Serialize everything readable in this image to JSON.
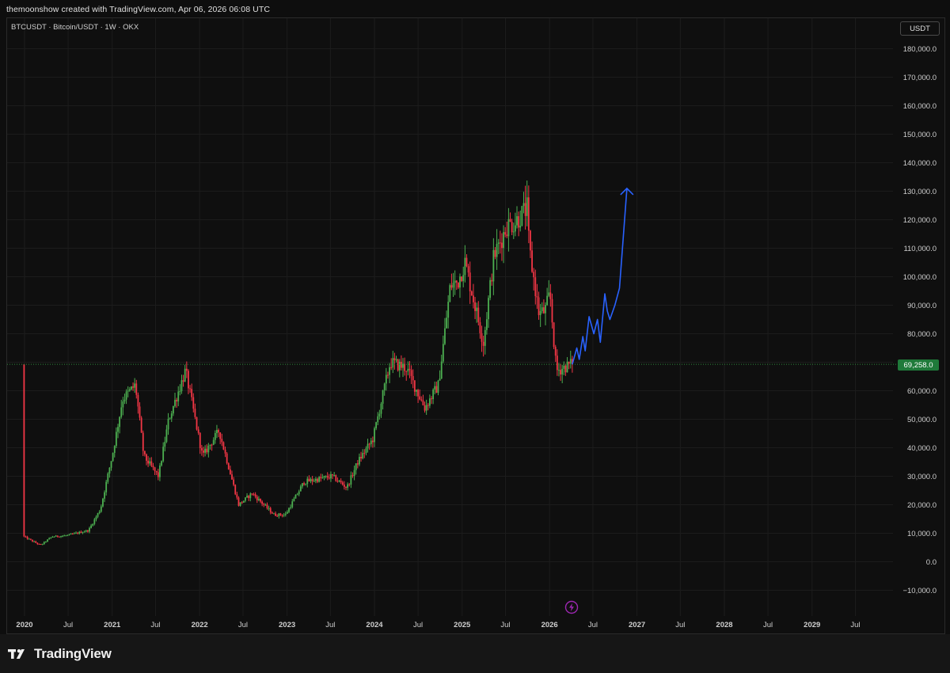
{
  "header": {
    "caption": "themoonshow created with TradingView.com, Apr 06, 2026 06:08 UTC"
  },
  "chart_header": {
    "symbol": "BTCUSDT · Bitcoin/USDT · 1W · OKX",
    "currency": "USDT"
  },
  "footer": {
    "brand": "TradingView"
  },
  "icons": {
    "logo": "tradingview-logo-icon",
    "bolt": "lightning-bolt-icon"
  },
  "colors": {
    "up": "#4caf50",
    "down": "#f23645",
    "projection": "#2962ff",
    "last_price_line": "#2e8b3a",
    "price_tag": "#1f7a3a"
  },
  "chart_data": {
    "type": "candlestick",
    "title": "BTCUSDT · Bitcoin/USDT · 1W · OKX",
    "ylabel": "USDT",
    "ylim": [
      -13000,
      190000
    ],
    "x_tick_labels": [
      "2020",
      "Jul",
      "2021",
      "Jul",
      "2022",
      "Jul",
      "2023",
      "Jul",
      "2024",
      "Jul",
      "2025",
      "Jul",
      "2026",
      "Jul",
      "2027",
      "Jul",
      "2028",
      "Jul",
      "2029",
      "Jul"
    ],
    "x_tick_dates": [
      "2020-01-01",
      "2020-07-01",
      "2021-01-01",
      "2021-07-01",
      "2022-01-01",
      "2022-07-01",
      "2023-01-01",
      "2023-07-01",
      "2024-01-01",
      "2024-07-01",
      "2025-01-01",
      "2025-07-01",
      "2026-01-01",
      "2026-07-01",
      "2027-01-01",
      "2027-07-01",
      "2028-01-01",
      "2028-07-01",
      "2029-01-01",
      "2029-07-01"
    ],
    "y_ticks": [
      -10000,
      0,
      10000,
      20000,
      30000,
      40000,
      50000,
      60000,
      70000,
      80000,
      90000,
      100000,
      110000,
      120000,
      130000,
      140000,
      150000,
      160000,
      170000,
      180000
    ],
    "y_tick_labels": [
      "−10,000.0",
      "0.0",
      "10,000.0",
      "20,000.0",
      "30,000.0",
      "40,000.0",
      "50,000.0",
      "60,000.0",
      "70,000.0",
      "80,000.0",
      "90,000.0",
      "100,000.0",
      "110,000.0",
      "120,000.0",
      "130,000.0",
      "140,000.0",
      "150,000.0",
      "160,000.0",
      "170,000.0",
      "180,000.0"
    ],
    "last_price": 69258,
    "last_price_label": "69,258.0",
    "grid": true,
    "price_path_approx": [
      [
        "2020-01-01",
        9000
      ],
      [
        "2020-03-15",
        5800
      ],
      [
        "2020-05-01",
        8800
      ],
      [
        "2020-07-01",
        9200
      ],
      [
        "2020-10-01",
        11000
      ],
      [
        "2020-11-20",
        18500
      ],
      [
        "2021-01-10",
        38000
      ],
      [
        "2021-02-20",
        57000
      ],
      [
        "2021-04-15",
        62000
      ],
      [
        "2021-05-20",
        37000
      ],
      [
        "2021-07-20",
        30000
      ],
      [
        "2021-09-01",
        50000
      ],
      [
        "2021-11-10",
        67000
      ],
      [
        "2022-01-20",
        37000
      ],
      [
        "2022-03-30",
        46000
      ],
      [
        "2022-06-20",
        20000
      ],
      [
        "2022-08-15",
        24000
      ],
      [
        "2022-11-15",
        16500
      ],
      [
        "2023-01-01",
        16500
      ],
      [
        "2023-03-20",
        28000
      ],
      [
        "2023-07-15",
        30000
      ],
      [
        "2023-09-15",
        26000
      ],
      [
        "2023-10-30",
        35000
      ],
      [
        "2024-01-01",
        43000
      ],
      [
        "2024-03-14",
        70000
      ],
      [
        "2024-05-20",
        68000
      ],
      [
        "2024-08-05",
        54000
      ],
      [
        "2024-10-01",
        62000
      ],
      [
        "2024-11-20",
        97000
      ],
      [
        "2024-12-20",
        98000
      ],
      [
        "2025-01-20",
        105000
      ],
      [
        "2025-04-07",
        77000
      ],
      [
        "2025-05-20",
        107000
      ],
      [
        "2025-07-15",
        118000
      ],
      [
        "2025-08-15",
        119000
      ],
      [
        "2025-10-06",
        124000
      ],
      [
        "2025-10-15",
        110000
      ],
      [
        "2025-11-25",
        87000
      ],
      [
        "2025-12-20",
        88000
      ],
      [
        "2026-01-10",
        94000
      ],
      [
        "2026-02-05",
        67000
      ],
      [
        "2026-04-06",
        69258
      ]
    ],
    "projection": [
      [
        "2026-04-06",
        69258
      ],
      [
        "2026-04-25",
        75000
      ],
      [
        "2026-05-05",
        71000
      ],
      [
        "2026-05-20",
        79000
      ],
      [
        "2026-05-30",
        74000
      ],
      [
        "2026-06-15",
        86000
      ],
      [
        "2026-07-05",
        80000
      ],
      [
        "2026-07-20",
        85000
      ],
      [
        "2026-08-01",
        77000
      ],
      [
        "2026-08-20",
        94000
      ],
      [
        "2026-08-30",
        88000
      ],
      [
        "2026-09-10",
        85000
      ],
      [
        "2026-10-01",
        90000
      ],
      [
        "2026-10-20",
        96000
      ],
      [
        "2026-11-20",
        131000
      ]
    ]
  }
}
